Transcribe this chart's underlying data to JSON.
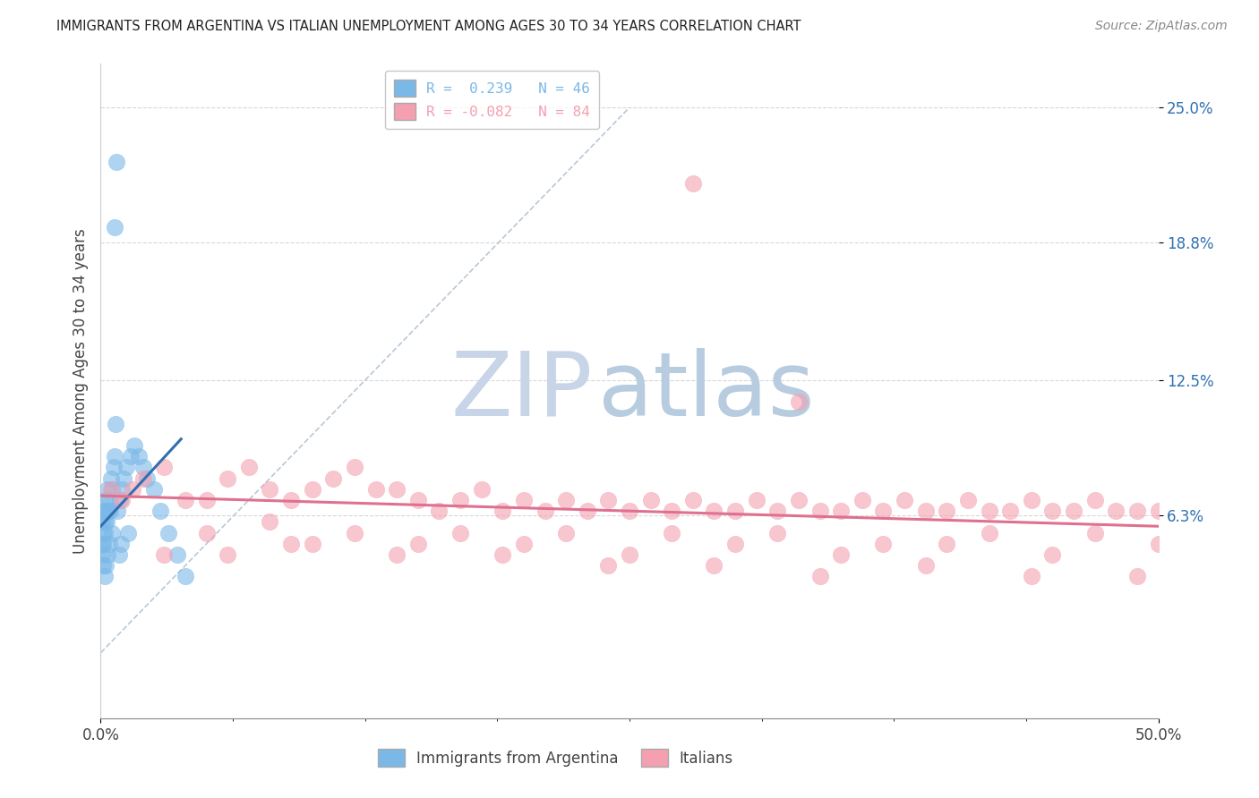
{
  "title": "IMMIGRANTS FROM ARGENTINA VS ITALIAN UNEMPLOYMENT AMONG AGES 30 TO 34 YEARS CORRELATION CHART",
  "source": "Source: ZipAtlas.com",
  "ylabel": "Unemployment Among Ages 30 to 34 years",
  "xlim": [
    0,
    50
  ],
  "ylim": [
    -3,
    27
  ],
  "ytick_positions": [
    6.3,
    12.5,
    18.8,
    25.0
  ],
  "ytick_labels": [
    "6.3%",
    "12.5%",
    "18.8%",
    "25.0%"
  ],
  "xtick_positions": [
    0,
    50
  ],
  "xtick_labels": [
    "0.0%",
    "50.0%"
  ],
  "legend_entries": [
    {
      "label": "R =  0.239   N = 46",
      "color": "#7ab8e8"
    },
    {
      "label": "R = -0.082   N = 84",
      "color": "#f4a0b0"
    }
  ],
  "blue_scatter_x": [
    0.08,
    0.1,
    0.12,
    0.15,
    0.18,
    0.2,
    0.22,
    0.25,
    0.28,
    0.3,
    0.35,
    0.4,
    0.45,
    0.5,
    0.55,
    0.6,
    0.65,
    0.7,
    0.8,
    0.9,
    1.0,
    1.1,
    1.2,
    1.4,
    1.6,
    1.8,
    2.0,
    2.2,
    2.5,
    2.8,
    3.2,
    3.6,
    4.0,
    0.05,
    0.08,
    0.12,
    0.18,
    0.22,
    0.3,
    0.42,
    0.52,
    0.65,
    0.75,
    0.85,
    0.95,
    1.3
  ],
  "blue_scatter_y": [
    6.0,
    5.5,
    5.0,
    6.5,
    6.0,
    5.5,
    7.0,
    6.5,
    6.0,
    7.5,
    6.5,
    7.0,
    6.5,
    8.0,
    7.5,
    8.5,
    9.0,
    10.5,
    6.5,
    7.0,
    7.5,
    8.0,
    8.5,
    9.0,
    9.5,
    9.0,
    8.5,
    8.0,
    7.5,
    6.5,
    5.5,
    4.5,
    3.5,
    4.5,
    5.0,
    4.0,
    3.5,
    4.0,
    4.5,
    5.0,
    5.5,
    19.5,
    22.5,
    4.5,
    5.0,
    5.5
  ],
  "pink_scatter_x": [
    0.5,
    1.0,
    1.5,
    2.0,
    3.0,
    4.0,
    5.0,
    6.0,
    7.0,
    8.0,
    9.0,
    10.0,
    11.0,
    12.0,
    13.0,
    14.0,
    15.0,
    16.0,
    17.0,
    18.0,
    19.0,
    20.0,
    21.0,
    22.0,
    23.0,
    24.0,
    25.0,
    26.0,
    27.0,
    28.0,
    29.0,
    30.0,
    31.0,
    32.0,
    33.0,
    34.0,
    35.0,
    36.0,
    37.0,
    38.0,
    39.0,
    40.0,
    41.0,
    42.0,
    43.0,
    44.0,
    45.0,
    46.0,
    47.0,
    48.0,
    49.0,
    50.0,
    8.0,
    12.0,
    17.0,
    22.0,
    27.0,
    32.0,
    37.0,
    42.0,
    47.0,
    5.0,
    10.0,
    15.0,
    20.0,
    25.0,
    30.0,
    35.0,
    40.0,
    45.0,
    50.0,
    3.0,
    6.0,
    9.0,
    14.0,
    19.0,
    24.0,
    29.0,
    34.0,
    39.0,
    44.0,
    49.0,
    28.0,
    33.0
  ],
  "pink_scatter_y": [
    7.5,
    7.0,
    7.5,
    8.0,
    8.5,
    7.0,
    7.0,
    8.0,
    8.5,
    7.5,
    7.0,
    7.5,
    8.0,
    8.5,
    7.5,
    7.5,
    7.0,
    6.5,
    7.0,
    7.5,
    6.5,
    7.0,
    6.5,
    7.0,
    6.5,
    7.0,
    6.5,
    7.0,
    6.5,
    7.0,
    6.5,
    6.5,
    7.0,
    6.5,
    7.0,
    6.5,
    6.5,
    7.0,
    6.5,
    7.0,
    6.5,
    6.5,
    7.0,
    6.5,
    6.5,
    7.0,
    6.5,
    6.5,
    7.0,
    6.5,
    6.5,
    6.5,
    6.0,
    5.5,
    5.5,
    5.5,
    5.5,
    5.5,
    5.0,
    5.5,
    5.5,
    5.5,
    5.0,
    5.0,
    5.0,
    4.5,
    5.0,
    4.5,
    5.0,
    4.5,
    5.0,
    4.5,
    4.5,
    5.0,
    4.5,
    4.5,
    4.0,
    4.0,
    3.5,
    4.0,
    3.5,
    3.5,
    21.5,
    11.5
  ],
  "blue_line_x": [
    0.0,
    3.8
  ],
  "blue_line_y": [
    5.8,
    9.8
  ],
  "pink_line_x": [
    0.0,
    50.0
  ],
  "pink_line_y": [
    7.2,
    5.8
  ],
  "diag_line_x": [
    0.0,
    25.0
  ],
  "diag_line_y": [
    0.0,
    25.0
  ],
  "watermark_zip": "ZIP",
  "watermark_atlas": "atlas",
  "watermark_color_zip": "#c8d4e8",
  "watermark_color_atlas": "#b8cce0",
  "bg_color": "#ffffff",
  "blue_color": "#7ab8e8",
  "pink_color": "#f4a0b0",
  "blue_line_color": "#3070b0",
  "pink_line_color": "#e07090",
  "diag_line_color": "#b8c8d8",
  "grid_color": "#d8d8d8",
  "title_color": "#222222",
  "source_color": "#888888",
  "ylabel_color": "#444444",
  "ytick_color": "#3070b0",
  "xtick_color": "#444444"
}
